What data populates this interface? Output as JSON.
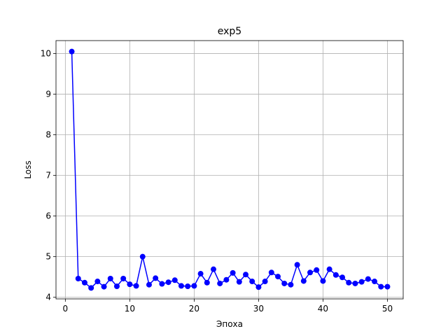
{
  "chart_data": {
    "type": "line",
    "title": "exp5",
    "xlabel": "Эпоха",
    "ylabel": "Loss",
    "xlim": [
      -1.45,
      52.45
    ],
    "ylim": [
      3.96,
      10.32
    ],
    "xticks": [
      0,
      10,
      20,
      30,
      40,
      50
    ],
    "yticks": [
      4,
      5,
      6,
      7,
      8,
      9,
      10
    ],
    "grid": true,
    "line_color": "#0000ff",
    "marker": "circle",
    "series": [
      {
        "x": [
          1,
          2,
          3,
          4,
          5,
          6,
          7,
          8,
          9,
          10,
          11,
          12,
          13,
          14,
          15,
          16,
          17,
          18,
          19,
          20,
          21,
          22,
          23,
          24,
          25,
          26,
          27,
          28,
          29,
          30,
          31,
          32,
          33,
          34,
          35,
          36,
          37,
          38,
          39,
          40,
          41,
          42,
          43,
          44,
          45,
          46,
          47,
          48,
          49,
          50
        ],
        "values": [
          10.05,
          4.46,
          4.36,
          4.23,
          4.39,
          4.26,
          4.46,
          4.27,
          4.46,
          4.32,
          4.28,
          5.0,
          4.31,
          4.47,
          4.33,
          4.37,
          4.42,
          4.28,
          4.27,
          4.28,
          4.58,
          4.36,
          4.69,
          4.34,
          4.43,
          4.6,
          4.38,
          4.56,
          4.39,
          4.25,
          4.39,
          4.61,
          4.51,
          4.34,
          4.31,
          4.8,
          4.4,
          4.61,
          4.67,
          4.4,
          4.69,
          4.55,
          4.49,
          4.36,
          4.34,
          4.38,
          4.45,
          4.39,
          4.26,
          4.26
        ]
      }
    ]
  }
}
